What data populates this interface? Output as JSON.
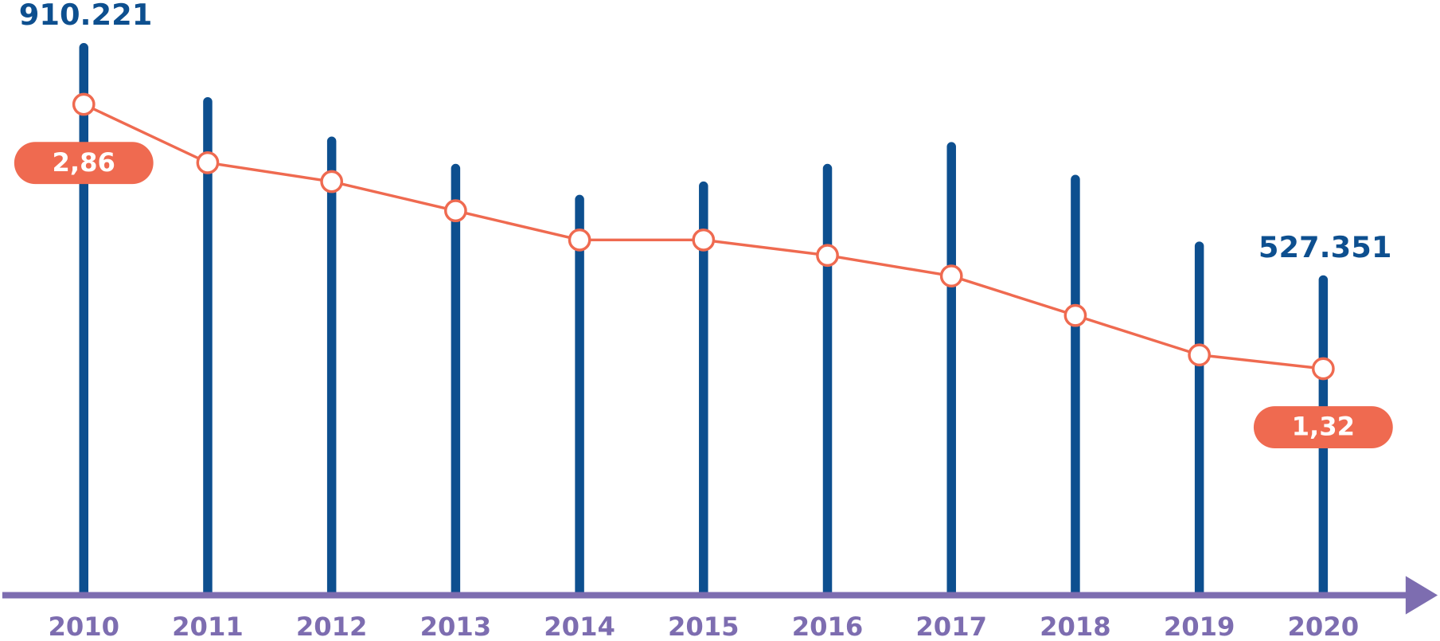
{
  "chart_data": {
    "type": "bar_line",
    "categories": [
      "2010",
      "2011",
      "2012",
      "2013",
      "2014",
      "2015",
      "2016",
      "2017",
      "2018",
      "2019",
      "2020"
    ],
    "series": [
      {
        "type": "bar",
        "color": "#0d4f8f",
        "values": [
          910221,
          821000,
          756000,
          711000,
          660000,
          682000,
          711000,
          747000,
          693000,
          583000,
          527351
        ],
        "value_labels": [
          "910.221",
          null,
          null,
          null,
          null,
          null,
          null,
          null,
          null,
          null,
          "527.351"
        ]
      },
      {
        "type": "line",
        "axis": "y2",
        "color": "#ef6a50",
        "values": [
          2.86,
          2.52,
          2.41,
          2.24,
          2.07,
          2.07,
          1.98,
          1.86,
          1.63,
          1.4,
          1.32
        ],
        "value_labels": [
          "2,86",
          null,
          null,
          null,
          null,
          null,
          null,
          null,
          null,
          null,
          "1,32"
        ]
      }
    ],
    "ylim": [
      0,
      1000000
    ],
    "y2lim": [
      0,
      3.5
    ],
    "axis_color": "#7d6db0"
  }
}
